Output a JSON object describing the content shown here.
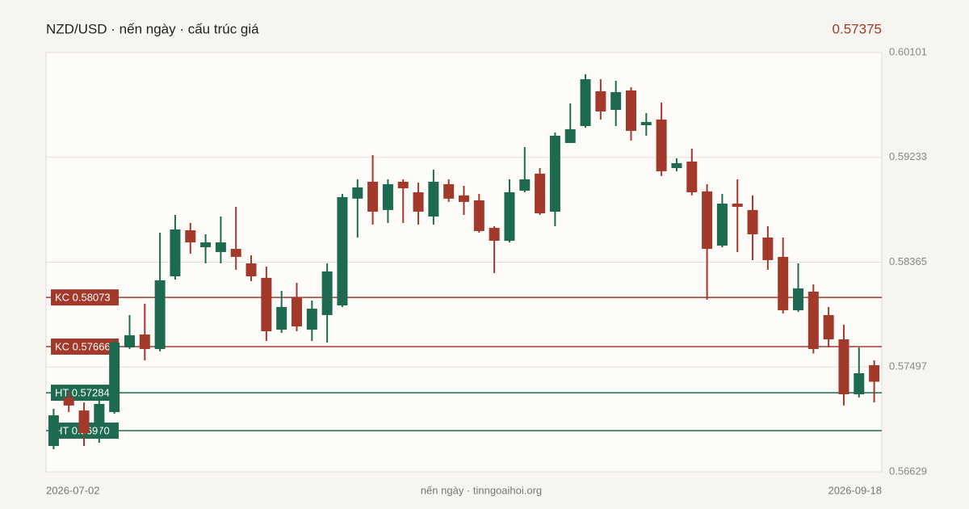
{
  "chart_data": {
    "type": "candlestick",
    "title": "NZD/USD · nến ngày · cấu trúc giá",
    "last_price": 0.57375,
    "footer": "nến ngày · tinngoaihoi.org",
    "categories": [
      "2026-07-02",
      null,
      null,
      null,
      null,
      null,
      null,
      null,
      null,
      null,
      null,
      null,
      null,
      null,
      null,
      null,
      null,
      null,
      null,
      null,
      null,
      null,
      null,
      null,
      null,
      null,
      null,
      null,
      null,
      null,
      null,
      null,
      null,
      null,
      null,
      null,
      null,
      null,
      null,
      null,
      null,
      null,
      null,
      null,
      null,
      null,
      null,
      null,
      null,
      null,
      null,
      null,
      null,
      null,
      "2026-09-18"
    ],
    "open": [
      0.56843,
      0.57245,
      0.57137,
      0.5703,
      0.57124,
      0.57659,
      0.57766,
      0.57646,
      0.58248,
      0.58629,
      0.58489,
      0.58449,
      0.58475,
      0.58355,
      0.58235,
      0.57806,
      0.58074,
      0.57806,
      0.57927,
      0.58007,
      0.58891,
      0.59031,
      0.58797,
      0.59031,
      0.58944,
      0.58743,
      0.59011,
      0.58918,
      0.58877,
      0.58649,
      0.58542,
      0.58957,
      0.59098,
      0.58783,
      0.59352,
      0.59492,
      0.5978,
      0.59626,
      0.59787,
      0.59499,
      0.59546,
      0.59144,
      0.59198,
      0.58951,
      0.58502,
      0.5885,
      0.58797,
      0.58569,
      0.58409,
      0.57967,
      0.58121,
      0.57927,
      0.57726,
      0.57271,
      0.57512
    ],
    "high": [
      0.57151,
      0.57298,
      0.57204,
      0.57258,
      0.57726,
      0.57927,
      0.58021,
      0.58609,
      0.58756,
      0.5869,
      0.58596,
      0.58743,
      0.58823,
      0.58422,
      0.58328,
      0.58128,
      0.58194,
      0.58047,
      0.58355,
      0.5893,
      0.59051,
      0.59252,
      0.59051,
      0.59051,
      0.59024,
      0.59131,
      0.59051,
      0.58997,
      0.5893,
      0.58663,
      0.59051,
      0.59318,
      0.59145,
      0.59439,
      0.5968,
      0.59921,
      0.5988,
      0.59867,
      0.59813,
      0.59599,
      0.59686,
      0.59225,
      0.59305,
      0.59011,
      0.5893,
      0.59051,
      0.58918,
      0.58663,
      0.58569,
      0.58355,
      0.58181,
      0.57994,
      0.57847,
      0.57659,
      0.57552
    ],
    "low": [
      0.56816,
      0.57124,
      0.56843,
      0.5687,
      0.57111,
      0.57646,
      0.57552,
      0.57626,
      0.58221,
      0.58435,
      0.58355,
      0.58355,
      0.58302,
      0.58208,
      0.57713,
      0.5778,
      0.57793,
      0.57713,
      0.57699,
      0.57994,
      0.58569,
      0.58676,
      0.5869,
      0.5869,
      0.58676,
      0.58676,
      0.58864,
      0.58756,
      0.58609,
      0.58275,
      0.58529,
      0.58944,
      0.58756,
      0.58663,
      0.59352,
      0.59479,
      0.59546,
      0.59492,
      0.59372,
      0.59412,
      0.59078,
      0.59118,
      0.58918,
      0.58054,
      0.58489,
      0.58449,
      0.58382,
      0.58302,
      0.5794,
      0.57954,
      0.57609,
      0.57659,
      0.57178,
      0.57245,
      0.57204
    ],
    "close": [
      0.57097,
      0.57178,
      0.5695,
      0.57191,
      0.57699,
      0.5776,
      0.57646,
      0.58215,
      0.58636,
      0.58529,
      0.58529,
      0.58529,
      0.58409,
      0.58248,
      0.57793,
      0.57994,
      0.57833,
      0.5798,
      0.58288,
      0.58904,
      0.58984,
      0.58783,
      0.59011,
      0.58977,
      0.58783,
      0.59031,
      0.58891,
      0.58864,
      0.58623,
      0.58542,
      0.58944,
      0.59051,
      0.5877,
      0.59412,
      0.59466,
      0.5988,
      0.59613,
      0.59773,
      0.59452,
      0.59526,
      0.59118,
      0.59185,
      0.58944,
      0.58475,
      0.5885,
      0.58823,
      0.58596,
      0.58382,
      0.57967,
      0.58148,
      0.57646,
      0.57726,
      0.57271,
      0.57445,
      0.57375
    ],
    "up_color": "#1d6a50",
    "down_color": "#a3392b",
    "ylim": [
      0.56629,
      0.60101
    ],
    "yticks": [
      0.56629,
      0.57497,
      0.58365,
      0.59233,
      0.60101
    ],
    "grid": true,
    "levels": [
      {
        "label": "KC 0.58073",
        "value": 0.58073,
        "color": "#a3392b"
      },
      {
        "label": "KC 0.57666",
        "value": 0.57666,
        "color": "#a3392b"
      },
      {
        "label": "HT 0.57284",
        "value": 0.57284,
        "color": "#1d6a50"
      },
      {
        "label": "HT 0.56970",
        "value": 0.5697,
        "color": "#1d6a50"
      }
    ]
  }
}
